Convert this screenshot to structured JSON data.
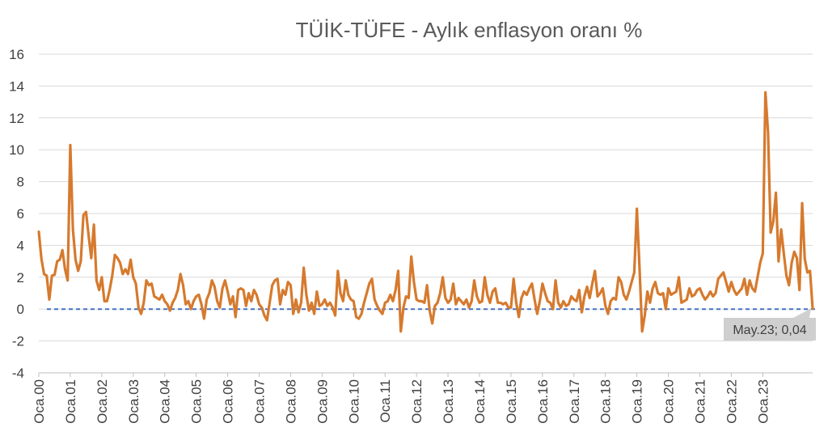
{
  "chart_data": {
    "type": "line",
    "title": "TÜİK-TÜFE - Aylık enflasyon oranı %",
    "xlabel": "",
    "ylabel": "",
    "ylim": [
      -4,
      16
    ],
    "yticks": [
      16,
      14,
      12,
      10,
      8,
      6,
      4,
      2,
      0,
      -2,
      -4
    ],
    "grid": "horizontal",
    "legend": "none",
    "x_tick_labels": [
      "Oca.00",
      "Oca.01",
      "Oca.02",
      "Oca.03",
      "Oca.04",
      "Oca.05",
      "Oca.06",
      "Oca.07",
      "Oca.08",
      "Oca.09",
      "Oca.10",
      "Oca.11",
      "Oca.12",
      "Oca.13",
      "Oca.14",
      "Oca.15",
      "Oca.16",
      "Oca.17",
      "Oca.18",
      "Oca.19",
      "Oca.20",
      "Oca.21",
      "Oca.22",
      "Oca.23"
    ],
    "x_start": "2000-01",
    "x_end": "2023-05",
    "series": [
      {
        "color": "#d67a2e",
        "values": [
          4.85,
          3.15,
          2.2,
          2.1,
          0.6,
          2.1,
          2.15,
          3.0,
          3.1,
          3.7,
          2.5,
          1.8,
          10.3,
          5.0,
          3.1,
          2.4,
          3.0,
          5.9,
          6.1,
          4.6,
          3.2,
          5.3,
          1.8,
          1.2,
          2.0,
          0.5,
          0.5,
          1.2,
          2.1,
          3.4,
          3.2,
          2.9,
          2.2,
          2.5,
          2.2,
          3.1,
          2.0,
          1.6,
          0.1,
          -0.3,
          0.4,
          1.8,
          1.5,
          1.6,
          0.8,
          0.7,
          0.6,
          0.9,
          0.5,
          0.3,
          -0.1,
          0.4,
          0.7,
          1.2,
          2.2,
          1.5,
          0.3,
          0.5,
          0.0,
          0.5,
          0.8,
          0.9,
          0.3,
          -0.6,
          0.6,
          1.0,
          1.8,
          1.4,
          0.5,
          0.1,
          1.3,
          1.8,
          1.1,
          0.3,
          0.8,
          -0.5,
          1.2,
          1.3,
          1.2,
          0.2,
          1.0,
          0.5,
          1.2,
          0.9,
          0.3,
          0.1,
          -0.4,
          -0.7,
          0.4,
          1.5,
          1.8,
          1.9,
          0.3,
          1.2,
          0.9,
          1.7,
          1.5,
          -0.3,
          0.6,
          -0.2,
          0.4,
          2.6,
          0.9,
          -0.1,
          0.4,
          -0.3,
          1.1,
          0.2,
          0.3,
          0.6,
          0.2,
          0.4,
          0.1,
          -0.4,
          2.4,
          1.0,
          0.5,
          1.8,
          0.9,
          0.6,
          0.5,
          -0.5,
          -0.6,
          -0.3,
          0.4,
          1.0,
          1.6,
          1.9,
          0.6,
          0.2,
          -0.1,
          -0.3,
          0.4,
          0.5,
          0.9,
          0.5,
          1.2,
          2.4,
          -1.4,
          0.1,
          0.8,
          0.7,
          3.3,
          1.7,
          0.6,
          0.5,
          0.5,
          0.4,
          1.5,
          -0.1,
          -0.9,
          0.2,
          0.4,
          1.0,
          2.0,
          0.7,
          0.4,
          0.6,
          1.6,
          0.3,
          0.7,
          0.5,
          0.3,
          0.6,
          0.1,
          0.5,
          1.8,
          0.8,
          0.4,
          0.5,
          2.0,
          0.9,
          0.4,
          1.1,
          1.3,
          0.4,
          0.4,
          0.3,
          0.4,
          0.1,
          0.1,
          1.9,
          0.4,
          -0.5,
          0.7,
          1.1,
          0.9,
          1.3,
          1.6,
          0.6,
          -0.3,
          0.5,
          1.6,
          1.0,
          0.5,
          0.4,
          0.0,
          1.8,
          0.4,
          0.1,
          0.5,
          0.2,
          0.3,
          0.8,
          0.6,
          0.5,
          1.2,
          -0.2,
          0.8,
          1.4,
          0.7,
          1.6,
          2.4,
          0.8,
          1.0,
          1.3,
          0.2,
          -0.3,
          0.5,
          0.7,
          0.6,
          2.0,
          1.7,
          0.9,
          0.6,
          1.1,
          1.7,
          2.3,
          6.3,
          2.6,
          -1.4,
          -0.4,
          1.1,
          0.4,
          1.3,
          1.7,
          1.0,
          0.9,
          1.0,
          0.0,
          1.3,
          0.9,
          1.0,
          1.1,
          2.0,
          0.4,
          0.5,
          0.6,
          1.3,
          0.8,
          0.9,
          1.2,
          1.3,
          0.9,
          0.6,
          0.8,
          1.1,
          0.8,
          1.0,
          1.9,
          2.1,
          2.3,
          1.7,
          1.1,
          1.7,
          1.2,
          0.9,
          1.1,
          1.3,
          1.9,
          0.9,
          1.8,
          1.3,
          1.1,
          2.0,
          2.9,
          3.5,
          13.6,
          11.1,
          4.8,
          5.5,
          7.3,
          3.0,
          5.0,
          3.5,
          2.1,
          1.5,
          2.9,
          3.6,
          3.2,
          1.2,
          6.65,
          3.15,
          2.3,
          2.4,
          0.04
        ]
      }
    ],
    "reference_line": {
      "value": 0,
      "style": "dashed",
      "color": "#4472c4"
    },
    "callout": {
      "text": "May.23; 0,04",
      "month": "2023-05",
      "value": 0.04
    }
  }
}
